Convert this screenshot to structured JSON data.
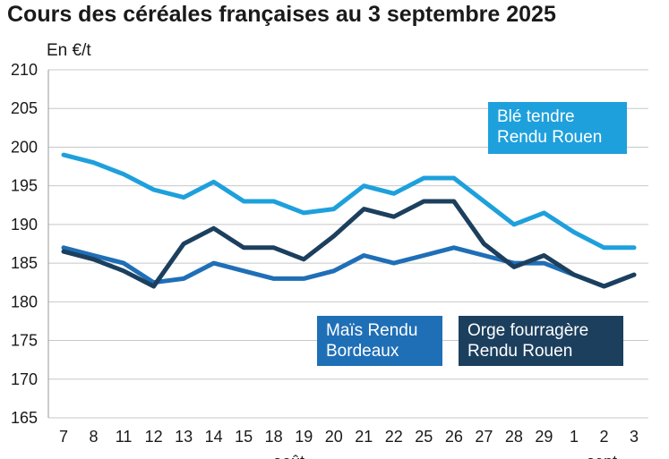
{
  "chart_data": {
    "type": "line",
    "title": "Cours des céréales françaises au 3 septembre 2025",
    "ylabel": "En €/t",
    "ylim": [
      165,
      210
    ],
    "yticks": [
      165,
      170,
      175,
      180,
      185,
      190,
      195,
      200,
      205,
      210
    ],
    "categories": [
      "7",
      "8",
      "11",
      "12",
      "13",
      "14",
      "15",
      "18",
      "19",
      "20",
      "21",
      "22",
      "25",
      "26",
      "27",
      "28",
      "29",
      "1",
      "2",
      "3"
    ],
    "month_labels": [
      "août",
      "sept."
    ],
    "grid": true,
    "series": [
      {
        "name": "Blé tendre Rendu Rouen",
        "color": "#1ea0dc",
        "values": [
          199,
          198,
          196.5,
          194.5,
          193.5,
          195.5,
          193,
          193,
          191.5,
          192,
          195,
          194,
          196,
          196,
          193,
          190,
          191.5,
          189,
          187,
          187
        ]
      },
      {
        "name": "Maïs Rendu Bordeaux",
        "color": "#1f6fb6",
        "values": [
          187,
          186,
          185,
          182.5,
          183,
          185,
          184,
          183,
          183,
          184,
          186,
          185,
          186,
          187,
          186,
          185,
          185,
          183.5,
          182,
          183.5
        ]
      },
      {
        "name": "Orge fourragère Rendu Rouen",
        "color": "#1c3f5e",
        "values": [
          186.5,
          185.5,
          184,
          182,
          187.5,
          189.5,
          187,
          187,
          185.5,
          188.5,
          192,
          191,
          193,
          193,
          187.5,
          184.5,
          186,
          183.5,
          182,
          183.5
        ]
      }
    ]
  },
  "legend": [
    {
      "line1": "Blé tendre",
      "line2": "Rendu Rouen",
      "color": "#1ea0dc"
    },
    {
      "line1": "Maïs Rendu",
      "line2": "Bordeaux",
      "color": "#1f6fb6"
    },
    {
      "line1": "Orge fourragère",
      "line2": "Rendu Rouen",
      "color": "#1c3f5e"
    }
  ]
}
